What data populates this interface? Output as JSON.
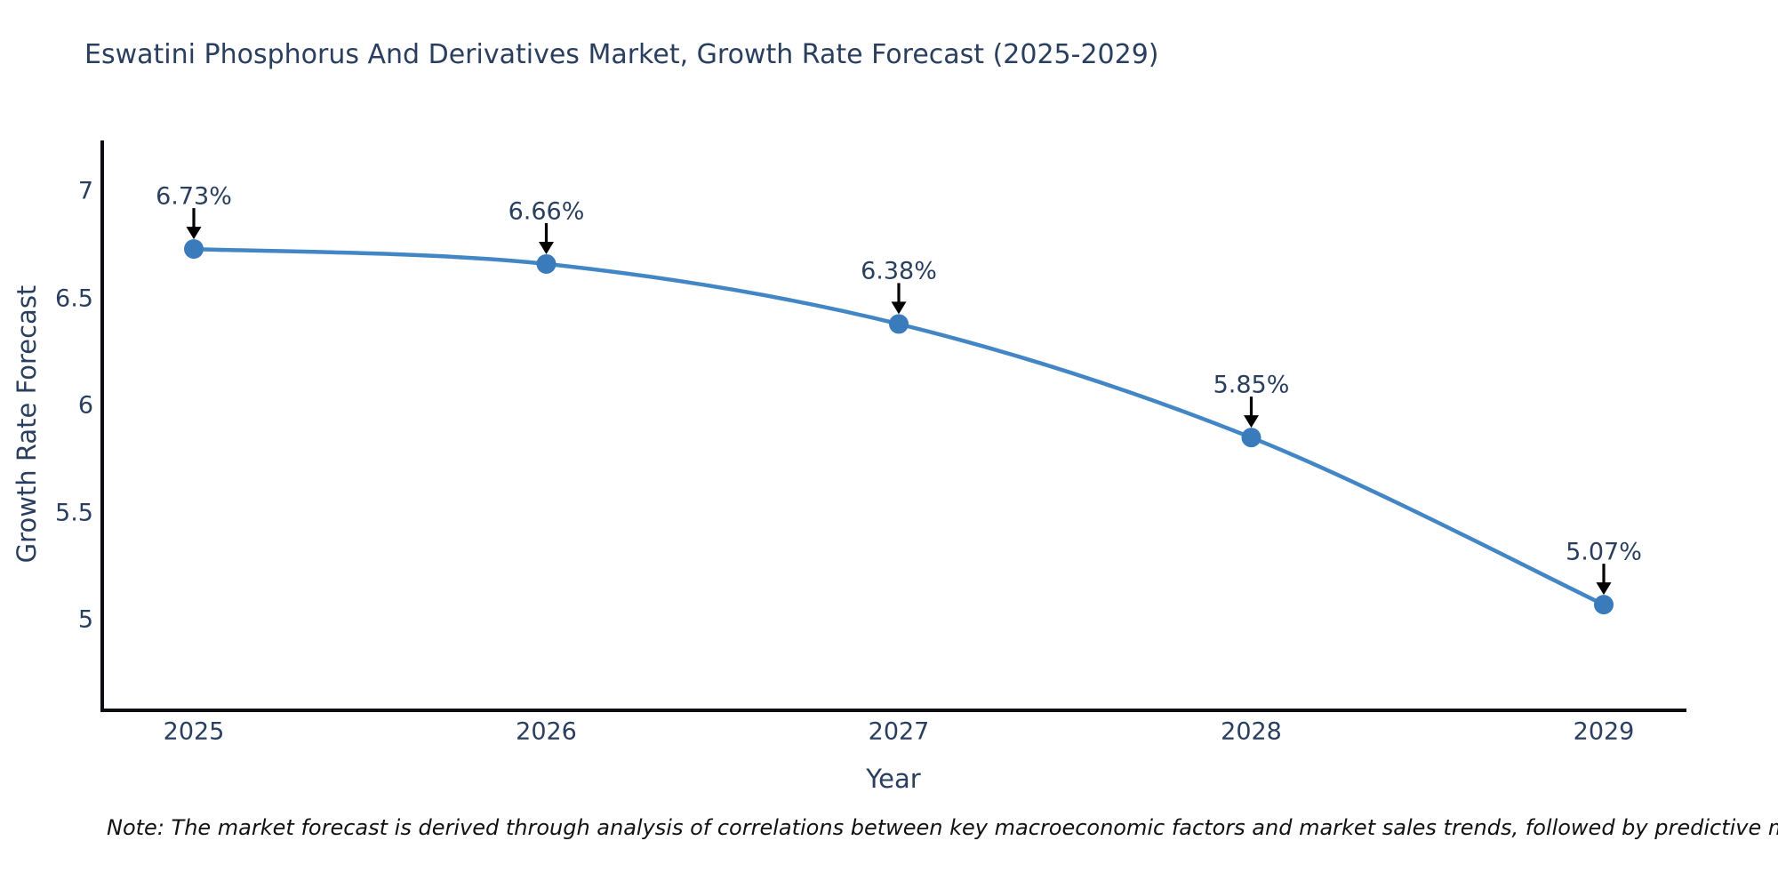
{
  "title": "Eswatini Phosphorus And Derivatives Market, Growth Rate Forecast (2025-2029)",
  "footnote": "Note: The market forecast is derived through analysis of correlations between key macroeconomic factors and market sales trends, followed by predictive modeling to project future sales",
  "colors": {
    "line": "#4286c5",
    "marker": "#3a7cbb",
    "axis": "#0d0d14",
    "text": "#2a3f5f",
    "arrow": "#000000",
    "background": "#ffffff"
  },
  "chart_data": {
    "type": "line",
    "title": "Eswatini Phosphorus And Derivatives Market, Growth Rate Forecast (2025-2029)",
    "xlabel": "Year",
    "ylabel": "Growth Rate Forecast",
    "x": [
      2025,
      2026,
      2027,
      2028,
      2029
    ],
    "categories": [
      "2025",
      "2026",
      "2027",
      "2028",
      "2029"
    ],
    "values": [
      6.73,
      6.66,
      6.38,
      5.85,
      5.07
    ],
    "point_labels": [
      "6.73%",
      "6.66%",
      "6.38%",
      "5.85%",
      "5.07%"
    ],
    "yticks": [
      7,
      6.5,
      6,
      5.5,
      5
    ],
    "ytick_labels": [
      "7",
      "6.5",
      "6",
      "5.5",
      "5"
    ],
    "ylim": [
      4.59,
      7.24
    ],
    "xlim": [
      2024.73,
      2029.24
    ],
    "grid": false,
    "legend": null,
    "line_shape": "spline",
    "annotation_style": "value label with downward black arrow above each marker"
  }
}
